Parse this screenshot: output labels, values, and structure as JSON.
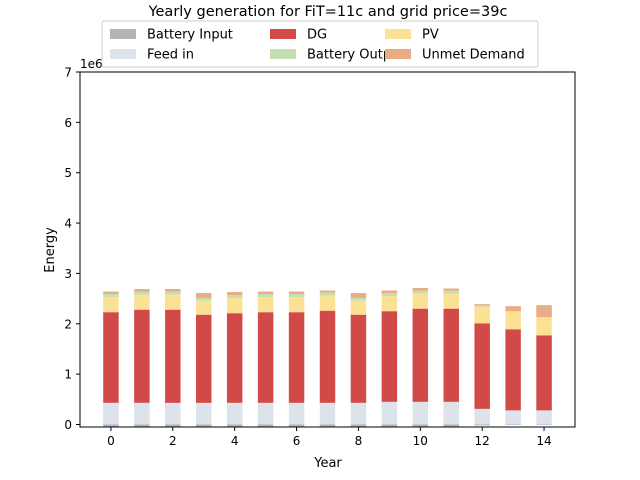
{
  "chart_data": {
    "type": "bar",
    "stacked": true,
    "title": "Yearly generation for FiT=11c and grid price=39c",
    "xlabel": "Year",
    "ylabel": "Energy",
    "y_offset_label": "1e6",
    "xlim": [
      -1,
      15
    ],
    "ylim": [
      -0.05,
      7
    ],
    "xticks": [
      0,
      2,
      4,
      6,
      8,
      10,
      12,
      14
    ],
    "yticks": [
      0,
      1,
      2,
      3,
      4,
      5,
      6,
      7
    ],
    "legend_position": "top-center",
    "categories": [
      0,
      1,
      2,
      3,
      4,
      5,
      6,
      7,
      8,
      9,
      10,
      11,
      12,
      13,
      14
    ],
    "series": [
      {
        "name": "Battery Input",
        "color": "#b4b4b4",
        "values": [
          -0.04,
          -0.04,
          -0.04,
          -0.04,
          -0.04,
          -0.04,
          -0.04,
          -0.04,
          -0.04,
          -0.04,
          -0.04,
          -0.04,
          -0.02,
          -0.01,
          -0.01
        ]
      },
      {
        "name": "Feed in",
        "color": "#dce3ea",
        "values": [
          0.43,
          0.43,
          0.43,
          0.43,
          0.43,
          0.43,
          0.43,
          0.43,
          0.43,
          0.45,
          0.45,
          0.45,
          0.31,
          0.28,
          0.28
        ]
      },
      {
        "name": "DG",
        "color": "#d24a48",
        "values": [
          1.8,
          1.85,
          1.85,
          1.75,
          1.78,
          1.8,
          1.8,
          1.83,
          1.75,
          1.8,
          1.85,
          1.85,
          1.7,
          1.61,
          1.49
        ]
      },
      {
        "name": "PV",
        "color": "#fbe194",
        "values": [
          0.3,
          0.3,
          0.3,
          0.28,
          0.3,
          0.3,
          0.3,
          0.3,
          0.28,
          0.3,
          0.3,
          0.3,
          0.33,
          0.35,
          0.35
        ]
      },
      {
        "name": "Battery Output",
        "color": "#c5e0b0",
        "values": [
          0.06,
          0.06,
          0.06,
          0.05,
          0.06,
          0.06,
          0.06,
          0.06,
          0.05,
          0.06,
          0.06,
          0.06,
          0.02,
          0.01,
          0.01
        ]
      },
      {
        "name": "Unmet Demand",
        "color": "#eaac82",
        "values": [
          0.05,
          0.05,
          0.05,
          0.1,
          0.06,
          0.05,
          0.05,
          0.04,
          0.1,
          0.05,
          0.05,
          0.04,
          0.03,
          0.1,
          0.24
        ]
      }
    ],
    "legend_order": [
      "Battery Input",
      "DG",
      "PV",
      "Feed in",
      "Battery Output",
      "Unmet Demand"
    ]
  }
}
